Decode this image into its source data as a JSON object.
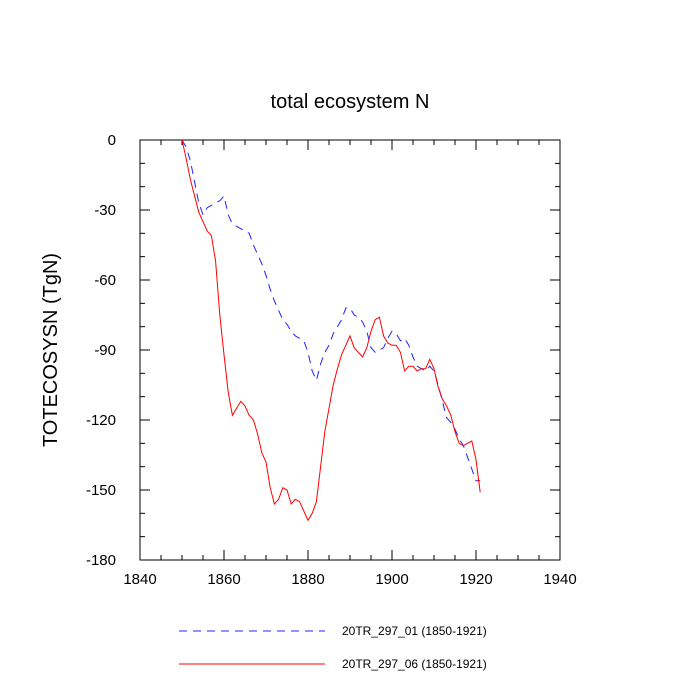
{
  "chart_data": {
    "type": "line",
    "title": "total ecosystem N",
    "xlabel": "",
    "ylabel": "TOTECOSYSN  (TgN)",
    "xlim": [
      1840,
      1940
    ],
    "ylim": [
      -180,
      0
    ],
    "xticks": [
      1840,
      1860,
      1880,
      1900,
      1920,
      1940
    ],
    "yticks": [
      0,
      -30,
      -60,
      -90,
      -120,
      -150,
      -180
    ],
    "grid": false,
    "legend_position": "bottom",
    "series": [
      {
        "name": "20TR_297_01 (1850-1921)",
        "color": "#2020ff",
        "style": "dashed",
        "x": [
          1850,
          1851,
          1852,
          1853,
          1854,
          1855,
          1856,
          1857,
          1858,
          1859,
          1860,
          1861,
          1862,
          1863,
          1864,
          1865,
          1866,
          1867,
          1868,
          1869,
          1870,
          1871,
          1872,
          1873,
          1874,
          1875,
          1876,
          1877,
          1878,
          1879,
          1880,
          1881,
          1882,
          1883,
          1884,
          1885,
          1886,
          1887,
          1888,
          1889,
          1890,
          1891,
          1892,
          1893,
          1894,
          1895,
          1896,
          1897,
          1898,
          1899,
          1900,
          1901,
          1902,
          1903,
          1904,
          1905,
          1906,
          1907,
          1908,
          1909,
          1910,
          1911,
          1912,
          1913,
          1914,
          1915,
          1916,
          1917,
          1918,
          1919,
          1920,
          1921
        ],
        "y": [
          0,
          -3,
          -9,
          -18,
          -27,
          -32,
          -29,
          -28,
          -27,
          -26,
          -24,
          -32,
          -36,
          -37,
          -38,
          -39,
          -40,
          -45,
          -49,
          -53,
          -58,
          -64,
          -69,
          -73,
          -77,
          -79,
          -82,
          -84,
          -85,
          -86,
          -91,
          -99,
          -103,
          -96,
          -91,
          -88,
          -83,
          -80,
          -77,
          -72,
          -72,
          -75,
          -76,
          -78,
          -82,
          -89,
          -91,
          -90,
          -89,
          -85,
          -82,
          -83,
          -86,
          -85,
          -88,
          -93,
          -97,
          -98,
          -99,
          -97,
          -99,
          -105,
          -112,
          -119,
          -121,
          -124,
          -128,
          -131,
          -136,
          -141,
          -146,
          -146
        ]
      },
      {
        "name": "20TR_297_06 (1850-1921)",
        "color": "#ff0000",
        "style": "solid",
        "x": [
          1850,
          1851,
          1852,
          1853,
          1854,
          1855,
          1856,
          1857,
          1858,
          1859,
          1860,
          1861,
          1862,
          1863,
          1864,
          1865,
          1866,
          1867,
          1868,
          1869,
          1870,
          1871,
          1872,
          1873,
          1874,
          1875,
          1876,
          1877,
          1878,
          1879,
          1880,
          1881,
          1882,
          1883,
          1884,
          1885,
          1886,
          1887,
          1888,
          1889,
          1890,
          1891,
          1892,
          1893,
          1894,
          1895,
          1896,
          1897,
          1898,
          1899,
          1900,
          1901,
          1902,
          1903,
          1904,
          1905,
          1906,
          1907,
          1908,
          1909,
          1910,
          1911,
          1912,
          1913,
          1914,
          1915,
          1916,
          1917,
          1918,
          1919,
          1920,
          1921
        ],
        "y": [
          0,
          -8,
          -17,
          -24,
          -31,
          -35,
          -39,
          -41,
          -52,
          -75,
          -92,
          -108,
          -118,
          -115,
          -112,
          -114,
          -118,
          -120,
          -126,
          -134,
          -138,
          -149,
          -156,
          -154,
          -149,
          -150,
          -156,
          -154,
          -155,
          -159,
          -163,
          -160,
          -155,
          -140,
          -125,
          -115,
          -105,
          -98,
          -92,
          -88,
          -84,
          -89,
          -91,
          -93,
          -89,
          -82,
          -77,
          -76,
          -84,
          -87,
          -88,
          -88,
          -91,
          -99,
          -97,
          -97,
          -99,
          -98,
          -98,
          -94,
          -98,
          -106,
          -111,
          -114,
          -118,
          -125,
          -130,
          -131,
          -130,
          -129,
          -137,
          -151
        ]
      }
    ]
  }
}
